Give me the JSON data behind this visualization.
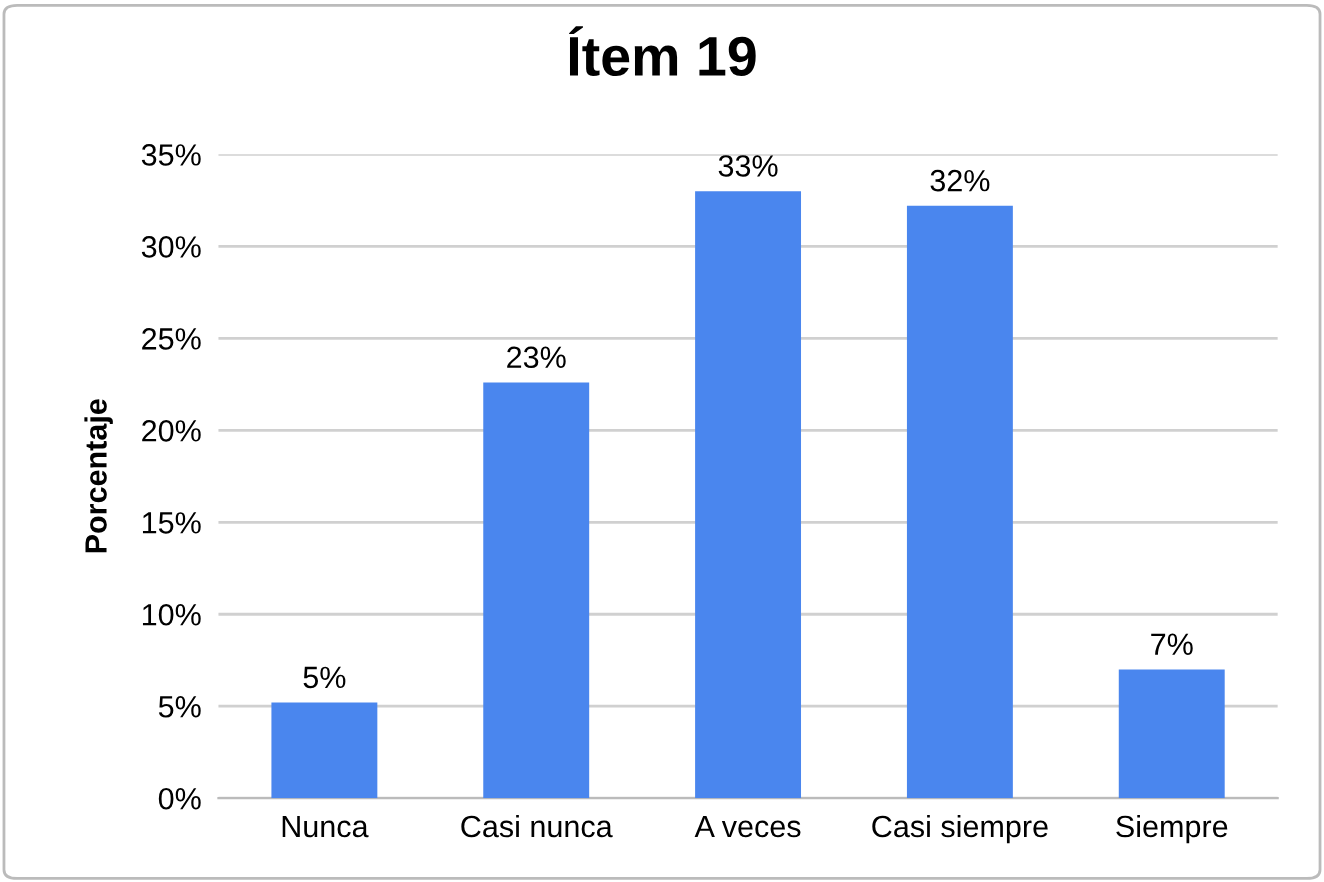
{
  "chart_data": {
    "type": "bar",
    "title": "Ítem 19",
    "ylabel": "Porcentaje",
    "categories": [
      "Nunca",
      "Casi nunca",
      "A veces",
      "Casi siempre",
      "Siempre"
    ],
    "values": [
      5.2,
      22.6,
      33,
      32.2,
      7
    ],
    "value_labels": [
      "5%",
      "23%",
      "33%",
      "32%",
      "7%"
    ],
    "color": "#4a86ee",
    "ylim": [
      0,
      35
    ],
    "yticks": [
      {
        "value": 0,
        "label": "0%"
      },
      {
        "value": 5,
        "label": "5%"
      },
      {
        "value": 10,
        "label": "10%"
      },
      {
        "value": 15,
        "label": "15%"
      },
      {
        "value": 20,
        "label": "20%"
      },
      {
        "value": 25,
        "label": "25%"
      },
      {
        "value": 30,
        "label": "30%"
      },
      {
        "value": 35,
        "label": "35%"
      }
    ],
    "grid": "y",
    "legend": false
  }
}
